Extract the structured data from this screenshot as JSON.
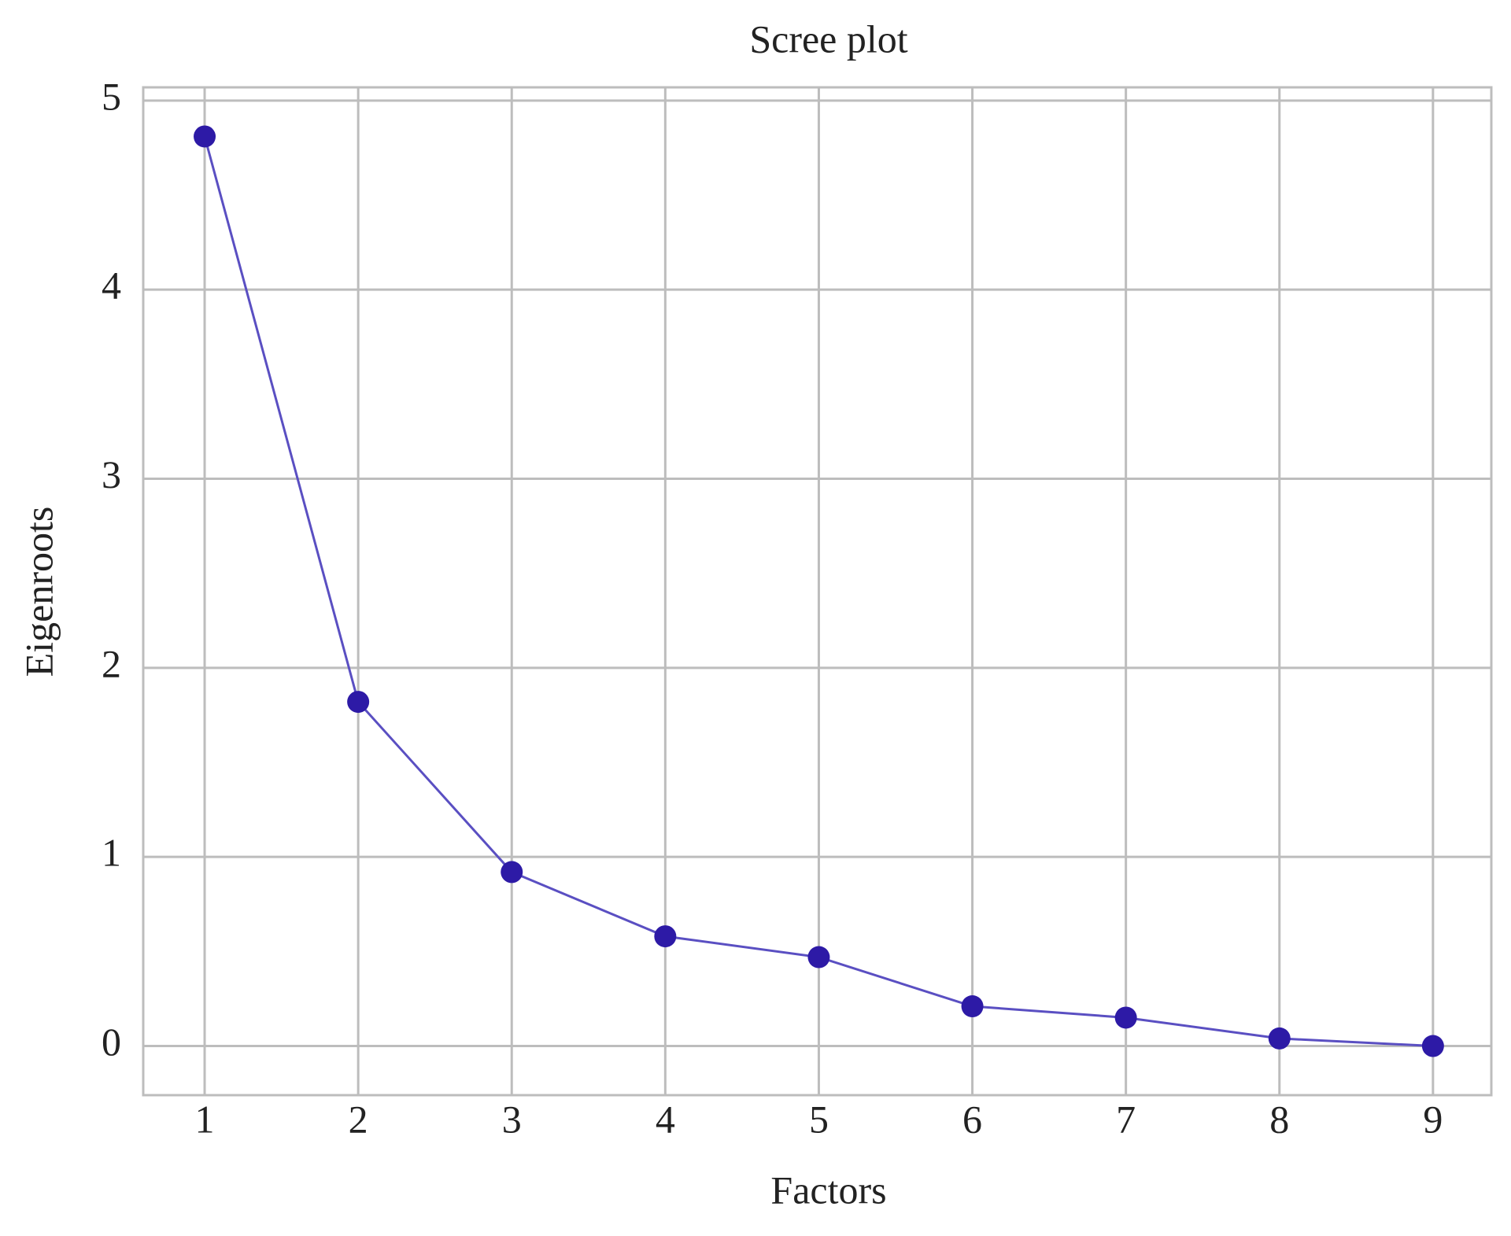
{
  "chart_data": {
    "type": "line",
    "title": "Scree plot",
    "x_label": "Factors",
    "y_label": "Eigenroots",
    "x": [
      1,
      2,
      3,
      4,
      5,
      6,
      7,
      8,
      9
    ],
    "series": [
      {
        "color": "#5a4fc2",
        "marker_color": "#2d1aa6",
        "values": [
          4.81,
          1.82,
          0.92,
          0.58,
          0.47,
          0.21,
          0.15,
          0.04,
          0.0
        ]
      }
    ],
    "xlim": [
      0.6,
      9.38
    ],
    "xticks": [
      1,
      2,
      3,
      4,
      5,
      6,
      7,
      8,
      9
    ],
    "ylim": [
      -0.26,
      5.07
    ],
    "yticks": [
      0,
      1,
      2,
      3,
      4,
      5
    ],
    "grid": true
  }
}
